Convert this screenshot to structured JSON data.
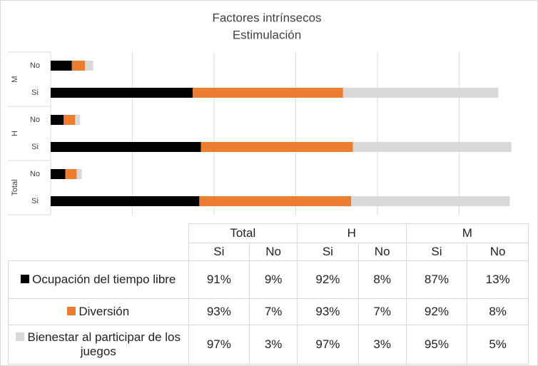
{
  "chart_data": {
    "type": "stacked-bar-horizontal",
    "title": [
      "Factores intrínsecos",
      "Estimulación"
    ],
    "groups": [
      "M",
      "H",
      "Total"
    ],
    "categories": [
      "No",
      "Si",
      "No",
      "Si",
      "No",
      "Si"
    ],
    "series": [
      {
        "name": "Ocupación del tiempo libre",
        "color": "#000000",
        "values": [
          13,
          87,
          8,
          92,
          9,
          91
        ],
        "value_labels": [
          "13%",
          "87%",
          "8%",
          "92%",
          "9%",
          "91%"
        ]
      },
      {
        "name": "Diversión",
        "color": "#ed7d31",
        "values": [
          8,
          92,
          7,
          93,
          7,
          93
        ],
        "value_labels": [
          "8%",
          "92%",
          "7%",
          "93%",
          "7%",
          "93%"
        ]
      },
      {
        "name": "Bienestar al participar de los juegos",
        "color": "#d9d9d9",
        "values": [
          5,
          95,
          3,
          97,
          3,
          97
        ],
        "value_labels": [
          "5%",
          "95%",
          "3%",
          "97%",
          "3%",
          "97%"
        ]
      }
    ],
    "xlim": [
      0,
      290
    ],
    "xticks": [
      0,
      50,
      100,
      150,
      200,
      250
    ],
    "grid": true
  }
}
